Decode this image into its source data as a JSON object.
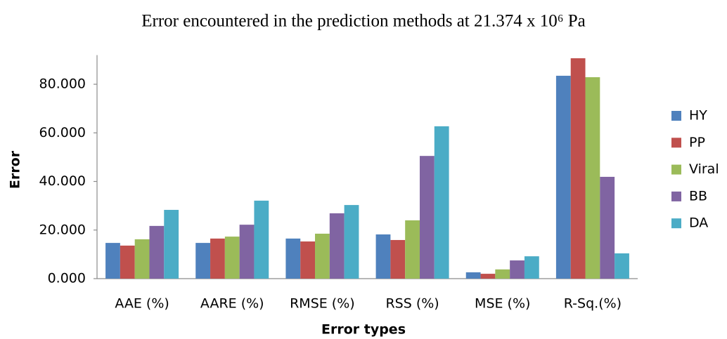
{
  "chart_data": {
    "type": "bar",
    "title": "Error encountered in the prediction methods at 21.374 x 10⁶ Pa",
    "x_label": "Error types",
    "y_label": "Error",
    "categories": [
      "AAE (%)",
      "AARE (%)",
      "RMSE (%)",
      "RSS (%)",
      "MSE (%)",
      "R-Sq.(%)"
    ],
    "series": [
      {
        "name": "HY",
        "color": "#4f81bd",
        "values": [
          14.7,
          14.7,
          16.5,
          18.2,
          2.6,
          83.5
        ]
      },
      {
        "name": "PP",
        "color": "#c0504d",
        "values": [
          13.6,
          16.5,
          15.3,
          15.9,
          2.0,
          90.7
        ]
      },
      {
        "name": "Viral",
        "color": "#9bbb59",
        "values": [
          16.2,
          17.3,
          18.5,
          24.0,
          3.8,
          82.9
        ]
      },
      {
        "name": "BB",
        "color": "#8064a2",
        "values": [
          21.7,
          22.2,
          26.9,
          50.5,
          7.5,
          41.9
        ]
      },
      {
        "name": "DA",
        "color": "#4bacc6",
        "values": [
          28.3,
          32.1,
          30.3,
          62.7,
          9.2,
          10.4
        ]
      }
    ],
    "ylim": [
      0,
      92
    ],
    "yticks": [
      {
        "value": 0,
        "label": "0.000"
      },
      {
        "value": 20,
        "label": "20.000"
      },
      {
        "value": 40,
        "label": "40.000"
      },
      {
        "value": 60,
        "label": "60.000"
      },
      {
        "value": 80,
        "label": "80.000"
      }
    ],
    "grid": false,
    "legend": "right"
  }
}
